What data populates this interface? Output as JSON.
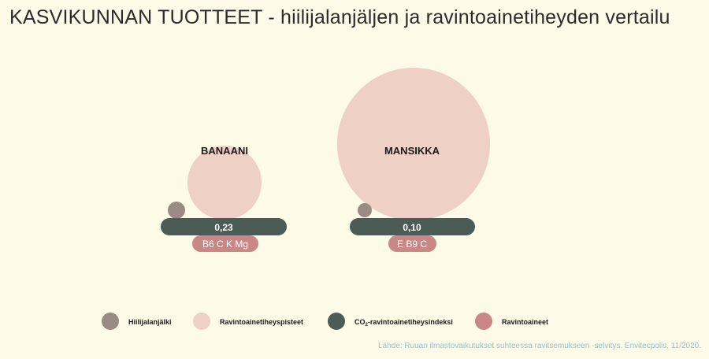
{
  "title": "KASVIKUNNAN TUOTTEET - hiilijalanjäljen ja ravintoainetiheyden vertailu",
  "source": "Lähde: Ruuan ilmastovaikutukset suhteessa ravitsemukseen -selvitys. Envitecpolis, 11/2020.",
  "colors": {
    "background": "#fdfbe7",
    "carbon_footprint": "#9a8c85",
    "nutrient_density": "#efd0c4",
    "co2_index": "#4a5c55",
    "nutrients": "#c98786"
  },
  "chart_data": {
    "type": "bubble",
    "products": [
      {
        "name": "BANAANI",
        "co2_index": "0,23",
        "nutrients": "B6 C K Mg"
      },
      {
        "name": "MANSIKKA",
        "co2_index": "0,10",
        "nutrients": "E B9 C"
      }
    ],
    "legend": {
      "position": "bottom",
      "items": [
        {
          "label": "Hiilijalanjälki"
        },
        {
          "label": "Ravintoainetiheyspisteet"
        },
        {
          "label": "CO",
          "sub": "2",
          "suffix": "-ravintoainetiheysindeksi"
        },
        {
          "label": "Ravintoaineet"
        }
      ]
    }
  }
}
